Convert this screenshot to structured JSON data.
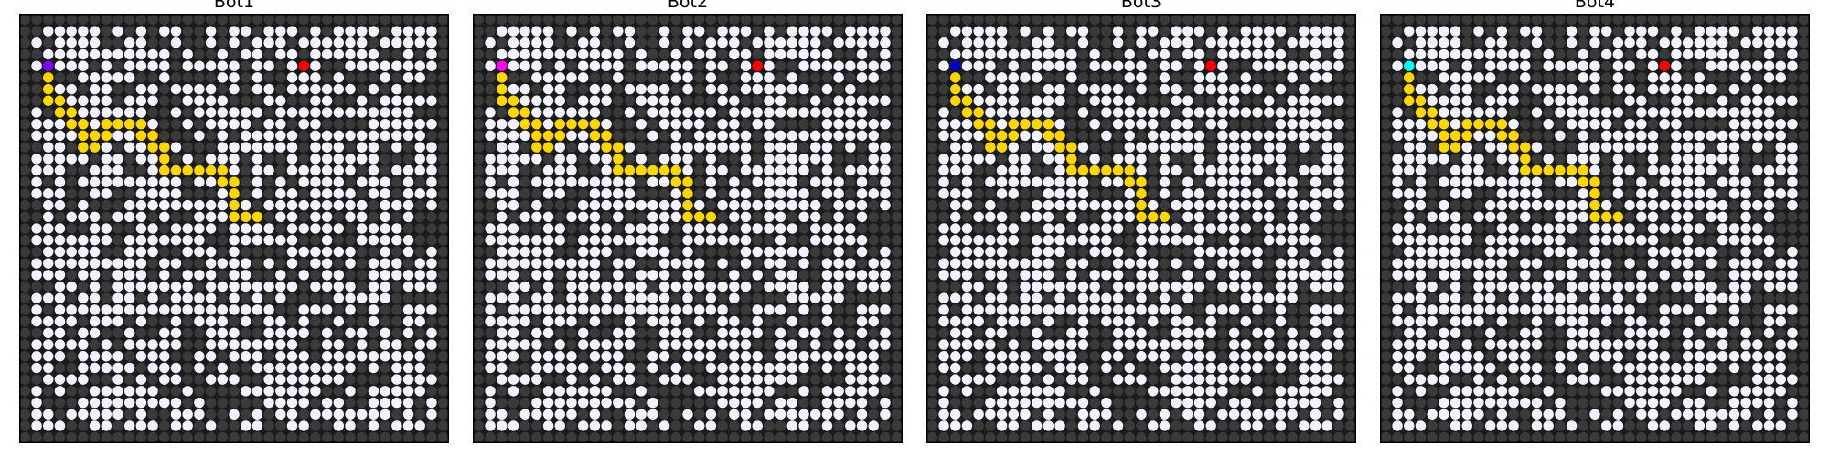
{
  "figure": {
    "grid_size": 37,
    "open_density": 0.66,
    "seed": 20240611,
    "colors": {
      "background": "#1b1b1b",
      "blocked": "#3a3a3a",
      "open": "#f2f1ff",
      "path": "#ffd700",
      "goal": "#ff0000",
      "frame": "#000000"
    },
    "goal": [
      24,
      4
    ],
    "path": [
      [
        2,
        4
      ],
      [
        2,
        5
      ],
      [
        2,
        6
      ],
      [
        2,
        7
      ],
      [
        3,
        7
      ],
      [
        3,
        8
      ],
      [
        4,
        8
      ],
      [
        4,
        9
      ],
      [
        5,
        9
      ],
      [
        5,
        10
      ],
      [
        5,
        11
      ],
      [
        6,
        11
      ],
      [
        6,
        10
      ],
      [
        7,
        10
      ],
      [
        7,
        9
      ],
      [
        8,
        9
      ],
      [
        9,
        9
      ],
      [
        10,
        9
      ],
      [
        10,
        10
      ],
      [
        11,
        10
      ],
      [
        11,
        11
      ],
      [
        12,
        11
      ],
      [
        12,
        12
      ],
      [
        12,
        13
      ],
      [
        13,
        13
      ],
      [
        14,
        13
      ],
      [
        15,
        13
      ],
      [
        16,
        13
      ],
      [
        17,
        13
      ],
      [
        17,
        14
      ],
      [
        18,
        14
      ],
      [
        18,
        15
      ],
      [
        18,
        16
      ],
      [
        18,
        17
      ],
      [
        19,
        17
      ],
      [
        20,
        17
      ]
    ]
  },
  "panels": [
    {
      "title": "Bot1",
      "bot_color": "#8000ff"
    },
    {
      "title": "Bot2",
      "bot_color": "#ff00ff"
    },
    {
      "title": "Bot3",
      "bot_color": "#0000cd"
    },
    {
      "title": "Bot4",
      "bot_color": "#00ffff"
    }
  ]
}
